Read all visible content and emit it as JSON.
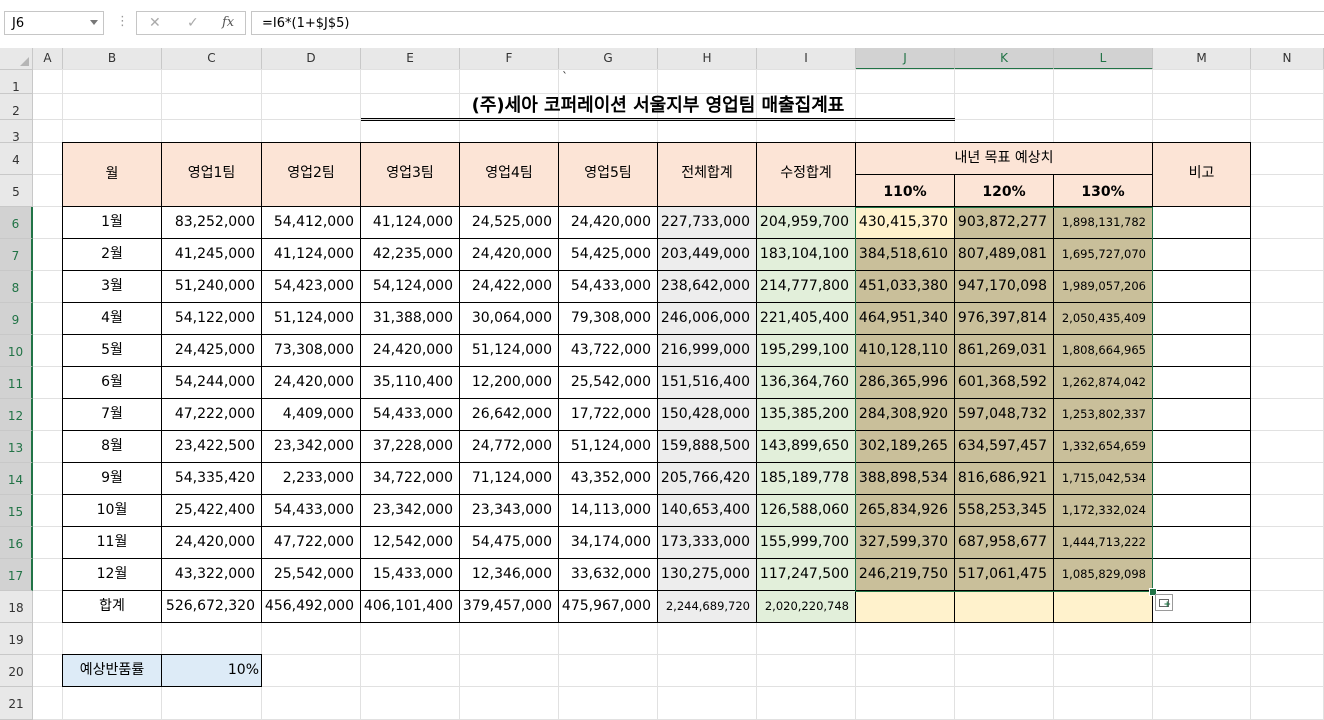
{
  "formula_bar": {
    "name_box": "J6",
    "cancel_icon": "✕",
    "enter_icon": "✓",
    "fx_label": "fx",
    "formula": "=I6*(1+$J$5)"
  },
  "columns": [
    "A",
    "B",
    "C",
    "D",
    "E",
    "F",
    "G",
    "H",
    "I",
    "J",
    "K",
    "L",
    "M",
    "N"
  ],
  "selected_columns": [
    "J",
    "K",
    "L"
  ],
  "rows": [
    "1",
    "2",
    "3",
    "4",
    "5",
    "6",
    "7",
    "8",
    "9",
    "10",
    "11",
    "12",
    "13",
    "14",
    "15",
    "16",
    "17",
    "18",
    "19",
    "20",
    "21"
  ],
  "selected_rows": [
    "6",
    "7",
    "8",
    "9",
    "10",
    "11",
    "12",
    "13",
    "14",
    "15",
    "16",
    "17"
  ],
  "sheet": {
    "tick": "`",
    "title": "(주)세아 코퍼레이션 서울지부 영업팀 매출집계표",
    "headers": {
      "month": "월",
      "team1": "영업1팀",
      "team2": "영업2팀",
      "team3": "영업3팀",
      "team4": "영업4팀",
      "team5": "영업5팀",
      "total": "전체합계",
      "adjusted": "수정합계",
      "forecast": "내년 목표 예상치",
      "pct110": "110%",
      "pct120": "120%",
      "pct130": "130%",
      "note": "비고"
    },
    "data_rows": [
      [
        "1월",
        "83,252,000",
        "54,412,000",
        "41,124,000",
        "24,525,000",
        "24,420,000",
        "227,733,000",
        "204,959,700",
        "430,415,370",
        "903,872,277",
        "1,898,131,782"
      ],
      [
        "2월",
        "41,245,000",
        "41,124,000",
        "42,235,000",
        "24,420,000",
        "54,425,000",
        "203,449,000",
        "183,104,100",
        "384,518,610",
        "807,489,081",
        "1,695,727,070"
      ],
      [
        "3월",
        "51,240,000",
        "54,423,000",
        "54,124,000",
        "24,422,000",
        "54,433,000",
        "238,642,000",
        "214,777,800",
        "451,033,380",
        "947,170,098",
        "1,989,057,206"
      ],
      [
        "4월",
        "54,122,000",
        "51,124,000",
        "31,388,000",
        "30,064,000",
        "79,308,000",
        "246,006,000",
        "221,405,400",
        "464,951,340",
        "976,397,814",
        "2,050,435,409"
      ],
      [
        "5월",
        "24,425,000",
        "73,308,000",
        "24,420,000",
        "51,124,000",
        "43,722,000",
        "216,999,000",
        "195,299,100",
        "410,128,110",
        "861,269,031",
        "1,808,664,965"
      ],
      [
        "6월",
        "54,244,000",
        "24,420,000",
        "35,110,400",
        "12,200,000",
        "25,542,000",
        "151,516,400",
        "136,364,760",
        "286,365,996",
        "601,368,592",
        "1,262,874,042"
      ],
      [
        "7월",
        "47,222,000",
        "4,409,000",
        "54,433,000",
        "26,642,000",
        "17,722,000",
        "150,428,000",
        "135,385,200",
        "284,308,920",
        "597,048,732",
        "1,253,802,337"
      ],
      [
        "8월",
        "23,422,500",
        "23,342,000",
        "37,228,000",
        "24,772,000",
        "51,124,000",
        "159,888,500",
        "143,899,650",
        "302,189,265",
        "634,597,457",
        "1,332,654,659"
      ],
      [
        "9월",
        "54,335,420",
        "2,233,000",
        "34,722,000",
        "71,124,000",
        "43,352,000",
        "205,766,420",
        "185,189,778",
        "388,898,534",
        "816,686,921",
        "1,715,042,534"
      ],
      [
        "10월",
        "25,422,400",
        "54,433,000",
        "23,342,000",
        "23,343,000",
        "14,113,000",
        "140,653,400",
        "126,588,060",
        "265,834,926",
        "558,253,345",
        "1,172,332,024"
      ],
      [
        "11월",
        "24,420,000",
        "47,722,000",
        "12,542,000",
        "54,475,000",
        "34,174,000",
        "173,333,000",
        "155,999,700",
        "327,599,370",
        "687,958,677",
        "1,444,713,222"
      ],
      [
        "12월",
        "43,322,000",
        "25,542,000",
        "15,433,000",
        "12,346,000",
        "33,632,000",
        "130,275,000",
        "117,247,500",
        "246,219,750",
        "517,061,475",
        "1,085,829,098"
      ]
    ],
    "total_row": [
      "합계",
      "526,672,320",
      "456,492,000",
      "406,101,400",
      "379,457,000",
      "475,967,000",
      "2,244,689,720",
      "2,020,220,748",
      "",
      "",
      ""
    ],
    "return_rate_label": "예상반품률",
    "return_rate_value": "10%"
  },
  "colors": {
    "header_fill": "#fce4d6",
    "total_col_fill": "#ededed",
    "adjusted_col_fill": "#e2efda",
    "forecast_fill": "#c9bf9a",
    "active_cell_fill": "#fff2cc",
    "rate_label_fill": "#ddebf7",
    "selection": "#217346"
  },
  "quick_analysis_icon": "quick-analysis-icon"
}
